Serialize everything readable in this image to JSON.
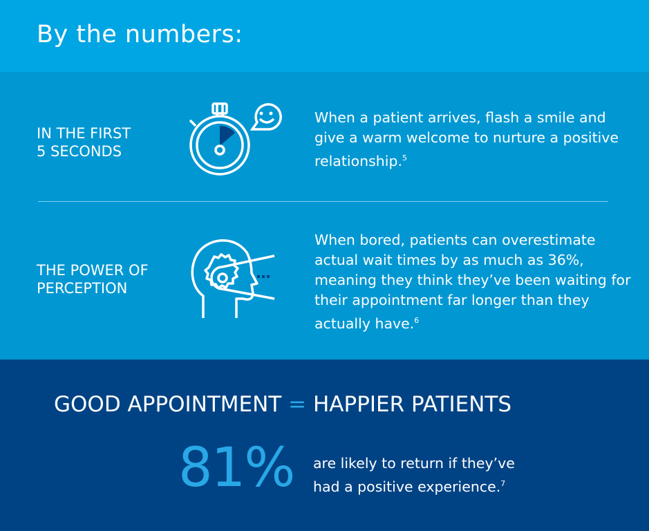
{
  "header": {
    "title": "By the numbers:"
  },
  "sections": [
    {
      "label_line1": "IN THE FIRST",
      "label_line2": "5 SECONDS",
      "icon": "stopwatch-smile-icon",
      "text": "When a patient arrives, flash a smile and give a warm welcome to nurture a positive relationship.",
      "footnote": "5"
    },
    {
      "label_line1": "THE POWER OF",
      "label_line2": "PERCEPTION",
      "icon": "head-gear-icon",
      "text": "When bored, patients can overestimate actual wait times by as much as 36%, meaning they think they’ve been waiting for their appointment far longer than they actually have.",
      "footnote": "6"
    }
  ],
  "bottom": {
    "heading_left": "GOOD APPOINTMENT",
    "heading_eq": "=",
    "heading_right": "HAPPIER PATIENTS",
    "stat": "81%",
    "text_line1": "are likely to return if they’ve",
    "text_line2": "had a positive experience.",
    "footnote": "7"
  },
  "colors": {
    "header": "#00a5e3",
    "middle": "#0097d3",
    "bottom": "#004385",
    "accent": "#29a8e8"
  }
}
